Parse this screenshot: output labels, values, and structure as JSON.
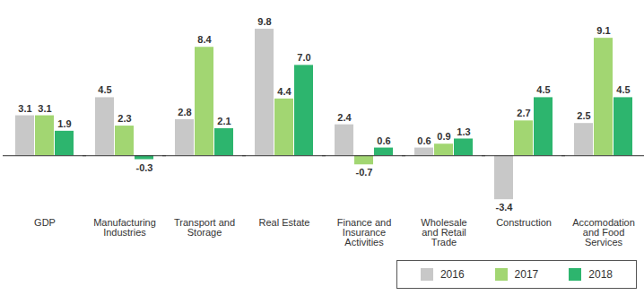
{
  "chart_data": {
    "type": "bar",
    "categories": [
      "GDP",
      "Manufacturing Industries",
      "Transport and Storage",
      "Real Estate",
      "Finance and Insurance Activities",
      "Wholesale and Retail Trade",
      "Construction",
      "Accomodation and Food Services"
    ],
    "series": [
      {
        "name": "2016",
        "color": "#c8c8c8",
        "values": [
          3.1,
          4.5,
          2.8,
          9.8,
          2.4,
          0.6,
          -3.4,
          2.5
        ],
        "value_labels": [
          "3.1",
          "4.5",
          "2.8",
          "9.8",
          "2.4",
          "0.6",
          "-3.4",
          "2.5"
        ]
      },
      {
        "name": "2017",
        "color": "#a2d672",
        "values": [
          3.1,
          2.3,
          8.4,
          4.4,
          -0.7,
          0.9,
          2.7,
          9.1
        ],
        "value_labels": [
          "3.1",
          "2.3",
          "8.4",
          "4.4",
          "-0.7",
          "0.9",
          "2.7",
          "9.1"
        ]
      },
      {
        "name": "2018",
        "color": "#2db56e",
        "values": [
          1.9,
          -0.3,
          2.1,
          7.0,
          0.6,
          1.3,
          4.5,
          4.5
        ],
        "value_labels": [
          "1.9",
          "-0.3",
          "2.1",
          "7.0",
          "0.6",
          "1.3",
          "4.5",
          "4.5"
        ]
      }
    ],
    "ylim": [
      -4.5,
      10.5
    ],
    "data_labels": true,
    "tick_labels": "x",
    "legend": "bottom-right"
  }
}
